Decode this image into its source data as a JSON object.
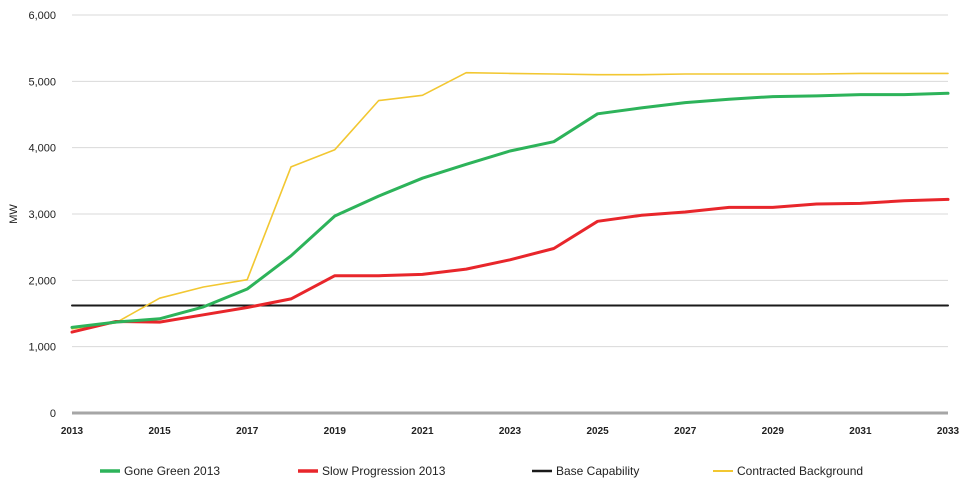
{
  "chart_data": {
    "type": "line",
    "ylabel": "MW",
    "ylim": [
      0,
      6000
    ],
    "yticks": [
      0,
      1000,
      2000,
      3000,
      4000,
      5000,
      6000
    ],
    "ytick_labels": [
      "0",
      "1,000",
      "2,000",
      "3,000",
      "4,000",
      "5,000",
      "6,000"
    ],
    "xlim": [
      2013,
      2033
    ],
    "xticks": [
      2013,
      2015,
      2017,
      2019,
      2021,
      2023,
      2025,
      2027,
      2029,
      2031,
      2033
    ],
    "xtick_labels": [
      "2013",
      "2015",
      "2017",
      "2019",
      "2021",
      "2023",
      "2025",
      "2027",
      "2029",
      "2031",
      "2033"
    ],
    "x": [
      2013,
      2014,
      2015,
      2016,
      2017,
      2018,
      2019,
      2020,
      2021,
      2022,
      2023,
      2024,
      2025,
      2026,
      2027,
      2028,
      2029,
      2030,
      2031,
      2032,
      2033
    ],
    "grid": "horizontal",
    "legend_position": "bottom",
    "series": [
      {
        "name": "Gone Green 2013",
        "color": "#2db35a",
        "width": 3,
        "values": [
          1290,
          1370,
          1420,
          1600,
          1870,
          2370,
          2970,
          3270,
          3540,
          3750,
          3950,
          4090,
          4510,
          4600,
          4680,
          4730,
          4770,
          4780,
          4800,
          4800,
          4820
        ]
      },
      {
        "name": "Slow Progression 2013",
        "color": "#e8262b",
        "width": 3,
        "values": [
          1220,
          1380,
          1370,
          1480,
          1590,
          1720,
          2070,
          2070,
          2090,
          2170,
          2310,
          2480,
          2890,
          2980,
          3030,
          3100,
          3100,
          3150,
          3160,
          3200,
          3220
        ]
      },
      {
        "name": "Base Capability",
        "color": "#1a1a1a",
        "width": 2,
        "values": [
          1620,
          1620,
          1620,
          1620,
          1620,
          1620,
          1620,
          1620,
          1620,
          1620,
          1620,
          1620,
          1620,
          1620,
          1620,
          1620,
          1620,
          1620,
          1620,
          1620,
          1620
        ]
      },
      {
        "name": "Contracted Background",
        "color": "#f2c731",
        "width": 1.6,
        "values": [
          1270,
          1360,
          1730,
          1900,
          2010,
          3710,
          3970,
          4710,
          4790,
          5130,
          5120,
          5110,
          5100,
          5100,
          5110,
          5110,
          5110,
          5110,
          5120,
          5120,
          5120
        ]
      }
    ]
  }
}
